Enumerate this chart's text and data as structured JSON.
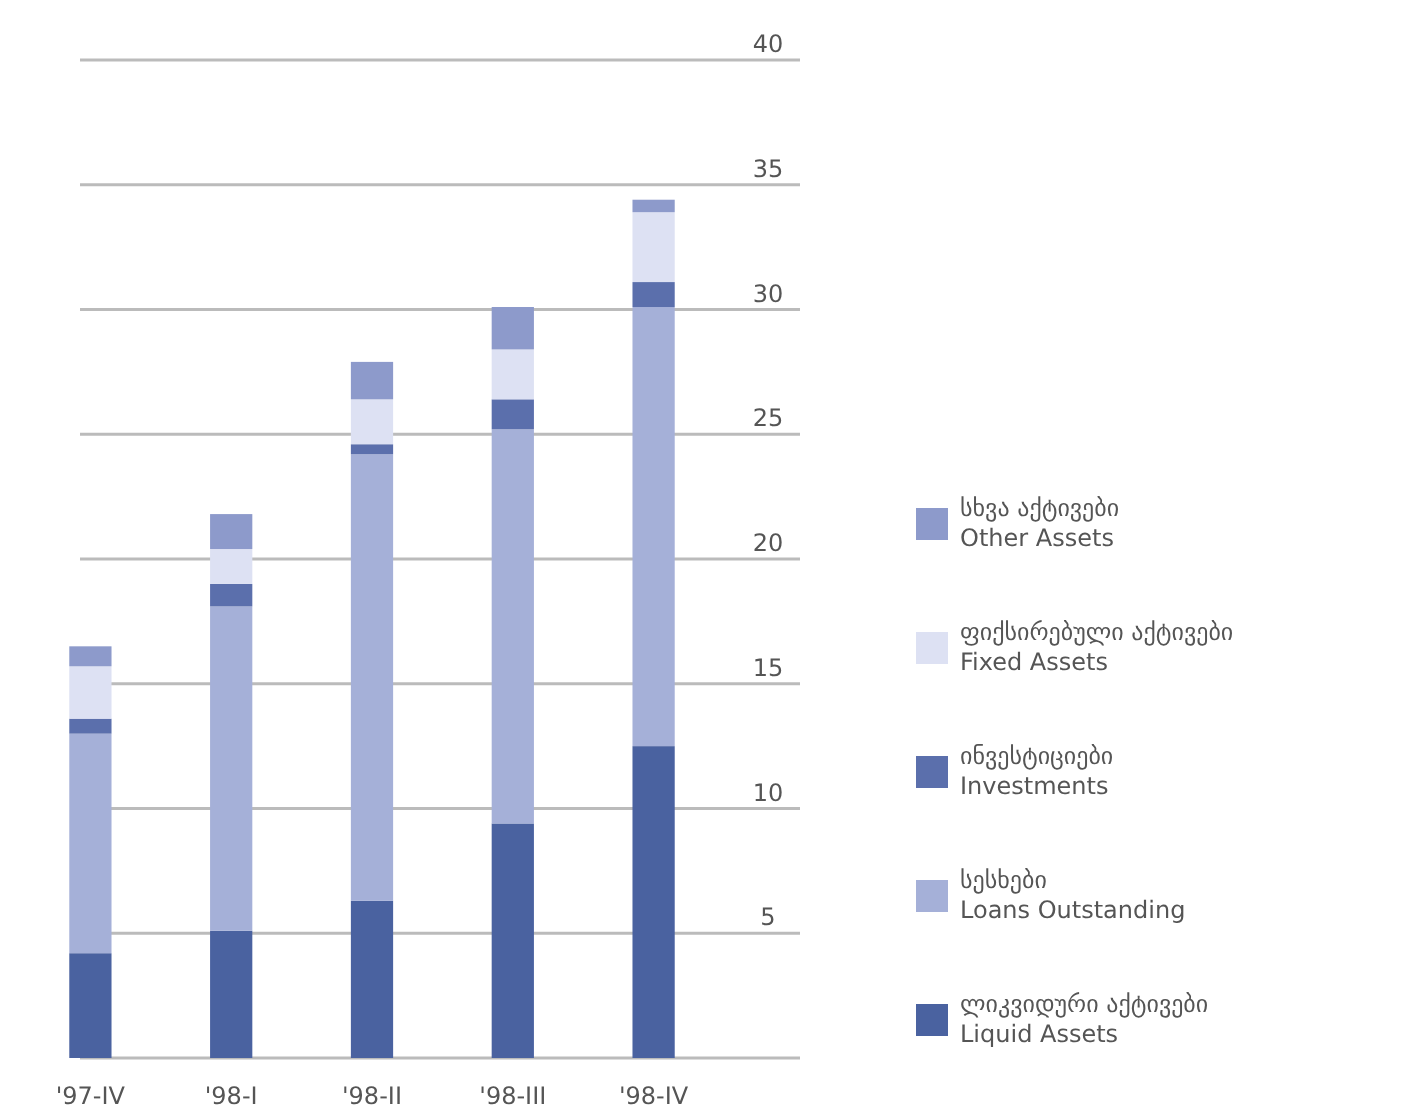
{
  "chart_data": {
    "type": "bar",
    "stacked": true,
    "categories": [
      "'97-IV",
      "'98-I",
      "'98-II",
      "'98-III",
      "'98-IV"
    ],
    "series": [
      {
        "name": "ლიკვიდური აქტივები\nLiquid Assets",
        "color": "#4a62a0",
        "values": [
          4.2,
          5.1,
          6.3,
          9.4,
          12.5
        ]
      },
      {
        "name": "სესხები\nLoans Outstanding",
        "color": "#a5b0d8",
        "values": [
          8.8,
          13.0,
          17.9,
          15.8,
          17.6
        ]
      },
      {
        "name": "ინვესტიციები\nInvestments",
        "color": "#5b6fac",
        "values": [
          0.6,
          0.9,
          0.4,
          1.2,
          1.0
        ]
      },
      {
        "name": "ფიქსირებული აქტივები\nFixed Assets",
        "color": "#dde1f3",
        "values": [
          2.1,
          1.4,
          1.8,
          2.0,
          2.8
        ]
      },
      {
        "name": "სხვა აქტივები\nOther Assets",
        "color": "#8d9acb",
        "values": [
          0.8,
          1.4,
          1.5,
          1.7,
          0.5
        ]
      }
    ],
    "ylim": [
      0,
      40
    ],
    "yticks": [
      {
        "value": 0,
        "label": null
      },
      5,
      10,
      15,
      20,
      25,
      30,
      35,
      40
    ],
    "grid": "y",
    "legend": "right"
  }
}
